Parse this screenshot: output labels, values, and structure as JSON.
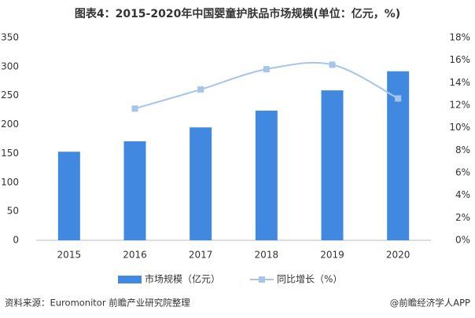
{
  "chart_data": {
    "type": "bar",
    "title": "图表4：2015-2020年中国婴童护肤品市场规模(单位：亿元，%)",
    "categories": [
      "2015",
      "2016",
      "2017",
      "2018",
      "2019",
      "2020"
    ],
    "series": [
      {
        "name": "市场规模（亿元）",
        "type": "bar",
        "color": "#4189e0",
        "values": [
          153,
          171,
          195,
          224,
          259,
          292
        ]
      },
      {
        "name": "同比增长（%）",
        "type": "line",
        "axis": "y2",
        "color": "#a5c5ea",
        "values": [
          null,
          11.7,
          13.4,
          15.2,
          15.6,
          12.6
        ]
      }
    ],
    "ylim": [
      0,
      350
    ],
    "yticks": [
      0,
      50,
      100,
      150,
      200,
      250,
      300,
      350
    ],
    "y2lim": [
      0,
      18
    ],
    "y2ticks": [
      {
        "value": 0,
        "label": "0%"
      },
      {
        "value": 2,
        "label": "2%"
      },
      {
        "value": 4,
        "label": "4%"
      },
      {
        "value": 6,
        "label": "6%"
      },
      {
        "value": 8,
        "label": "8%"
      },
      {
        "value": 10,
        "label": "10%"
      },
      {
        "value": 12,
        "label": "12%"
      },
      {
        "value": 14,
        "label": "14%"
      },
      {
        "value": 16,
        "label": "16%"
      },
      {
        "value": 18,
        "label": "18%"
      }
    ],
    "source": "资料来源：Euromonitor 前瞻产业研究院整理",
    "credit": "@前瞻经济学人APP"
  }
}
